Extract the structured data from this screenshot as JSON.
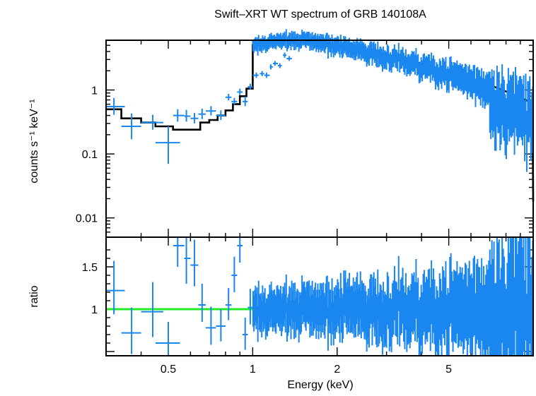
{
  "chart_data": [
    {
      "type": "scatter",
      "title": "Swift–XRT WT spectrum of GRB 140108A",
      "ylabel": "counts s⁻¹ keV⁻¹",
      "xscale": "log",
      "yscale": "log",
      "xlim": [
        0.3,
        10
      ],
      "ylim": [
        0.005,
        6
      ],
      "ytick_labels": [
        "0.01",
        "0.1",
        "1"
      ],
      "ytick_values": [
        0.01,
        0.1,
        1
      ],
      "colors": {
        "data": "#1a86f0",
        "model": "#000000"
      },
      "series": [
        {
          "kind": "data",
          "points": [
            [
              0.32,
              0.55,
              0.3,
              0.35,
              0.14,
              0.2
            ],
            [
              0.37,
              0.27,
              0.34,
              0.4,
              0.1,
              0.16
            ],
            [
              0.44,
              0.31,
              0.4,
              0.48,
              0.07,
              0.1
            ],
            [
              0.5,
              0.15,
              0.45,
              0.55,
              0.08,
              0.12
            ],
            [
              0.54,
              0.4,
              0.52,
              0.57,
              0.08,
              0.1
            ],
            [
              0.58,
              0.39,
              0.57,
              0.6,
              0.07,
              0.1
            ],
            [
              0.62,
              0.36,
              0.6,
              0.64,
              0.06,
              0.08
            ],
            [
              0.66,
              0.42,
              0.64,
              0.68,
              0.07,
              0.09
            ],
            [
              0.71,
              0.47,
              0.68,
              0.74,
              0.07,
              0.09
            ],
            [
              0.77,
              0.4,
              0.74,
              0.8,
              0.06,
              0.08
            ],
            [
              0.82,
              0.77,
              0.8,
              0.84,
              0.08,
              0.1
            ],
            [
              0.86,
              0.66,
              0.84,
              0.88,
              0.07,
              0.09
            ],
            [
              0.9,
              0.93,
              0.88,
              0.92,
              0.1,
              0.12
            ],
            [
              0.94,
              0.66,
              0.92,
              0.96,
              0.1,
              0.13
            ],
            [
              0.98,
              1.12,
              0.96,
              1.0,
              0.1,
              0.13
            ],
            [
              1.03,
              1.7,
              1.0,
              1.05,
              0.15,
              0.17
            ],
            [
              1.08,
              1.8,
              1.06,
              1.1,
              0.15,
              0.18
            ],
            [
              1.12,
              1.7,
              1.1,
              1.15,
              0.15,
              0.17
            ],
            [
              1.16,
              2.3,
              1.15,
              1.18,
              0.2,
              0.22
            ],
            [
              1.2,
              2.6,
              1.18,
              1.23,
              0.2,
              0.25
            ],
            [
              1.25,
              2.4,
              1.23,
              1.27,
              0.2,
              0.22
            ],
            [
              1.3,
              3.5,
              1.28,
              1.32,
              0.3,
              0.35
            ],
            [
              1.35,
              3.1,
              1.32,
              1.38,
              0.25,
              0.3
            ]
          ]
        },
        {
          "kind": "model",
          "steps": [
            [
              0.3,
              0.5
            ],
            [
              0.34,
              0.36
            ],
            [
              0.4,
              0.31
            ],
            [
              0.45,
              0.27
            ],
            [
              0.52,
              0.24
            ],
            [
              0.6,
              0.24
            ],
            [
              0.65,
              0.31
            ],
            [
              0.7,
              0.34
            ],
            [
              0.75,
              0.4
            ],
            [
              0.8,
              0.48
            ],
            [
              0.85,
              0.6
            ],
            [
              0.9,
              0.8
            ],
            [
              0.95,
              1.05
            ],
            [
              1.0,
              1.35
            ]
          ]
        }
      ]
    },
    {
      "type": "scatter",
      "xlabel": "Energy (keV)",
      "ylabel": "ratio",
      "xscale": "log",
      "xlim": [
        0.3,
        10
      ],
      "ylim": [
        0.45,
        1.85
      ],
      "xtick_labels": [
        "0.5",
        "1",
        "2",
        "5"
      ],
      "xtick_values": [
        0.5,
        1,
        2,
        5
      ],
      "ytick_labels": [
        "1",
        "1.5"
      ],
      "ytick_values": [
        1,
        1.5
      ],
      "reference_line": 1,
      "colors": {
        "data": "#1a86f0",
        "reference": "#22e82a"
      },
      "series": [
        {
          "kind": "data",
          "points": [
            [
              0.32,
              1.22,
              0.3,
              0.35,
              0.28,
              0.35
            ],
            [
              0.37,
              0.72,
              0.34,
              0.4,
              0.25,
              0.3
            ],
            [
              0.44,
              0.97,
              0.4,
              0.48,
              0.3,
              0.35
            ],
            [
              0.5,
              0.6,
              0.45,
              0.55,
              0.2,
              0.25
            ],
            [
              0.54,
              1.75,
              0.52,
              0.57,
              0.25,
              0.3
            ],
            [
              0.58,
              1.6,
              0.57,
              0.6,
              0.3,
              0.35
            ],
            [
              0.62,
              1.52,
              0.6,
              0.64,
              0.25,
              0.3
            ],
            [
              0.66,
              1.05,
              0.64,
              0.68,
              0.2,
              0.25
            ],
            [
              0.71,
              0.78,
              0.68,
              0.74,
              0.2,
              0.25
            ],
            [
              0.77,
              0.8,
              0.74,
              0.8,
              0.18,
              0.2
            ],
            [
              0.82,
              1.05,
              0.8,
              0.84,
              0.18,
              0.2
            ],
            [
              0.86,
              1.4,
              0.84,
              0.88,
              0.2,
              0.22
            ],
            [
              0.9,
              1.75,
              0.88,
              0.92,
              0.2,
              0.22
            ],
            [
              0.94,
              0.7,
              0.92,
              0.96,
              0.18,
              0.2
            ],
            [
              0.98,
              1.02,
              0.96,
              1.0,
              0.2,
              0.22
            ]
          ]
        }
      ]
    }
  ]
}
